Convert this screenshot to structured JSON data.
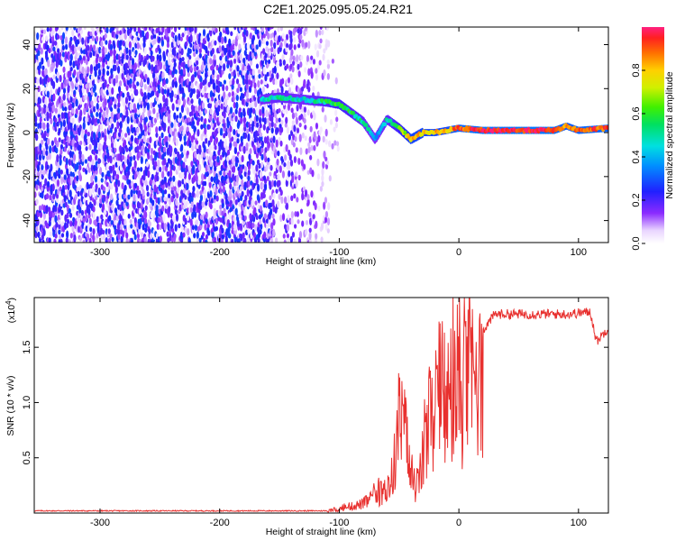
{
  "title": "C2E1.2025.095.05.24.R21",
  "chart_data": [
    {
      "type": "heatmap",
      "xlabel": "Height of straight line (km)",
      "ylabel": "Frequency (Hz)",
      "xlim": [
        -355,
        125
      ],
      "ylim": [
        -50,
        48
      ],
      "xticks": [
        -300,
        -200,
        -100,
        0,
        100
      ],
      "yticks": [
        -40,
        -20,
        0,
        20,
        40
      ],
      "noise_region": {
        "x_range": [
          -355,
          -100
        ],
        "y_range": [
          -50,
          48
        ],
        "typical_amplitude": 0.12
      },
      "ridge": {
        "description_points": [
          {
            "x": -165,
            "y": 15,
            "amp": 0.45
          },
          {
            "x": -150,
            "y": 16,
            "amp": 0.5
          },
          {
            "x": -130,
            "y": 15,
            "amp": 0.45
          },
          {
            "x": -110,
            "y": 14,
            "amp": 0.55
          },
          {
            "x": -100,
            "y": 13,
            "amp": 0.6
          },
          {
            "x": -90,
            "y": 9,
            "amp": 0.55
          },
          {
            "x": -80,
            "y": 5,
            "amp": 0.5
          },
          {
            "x": -70,
            "y": -3,
            "amp": 0.4
          },
          {
            "x": -60,
            "y": 6,
            "amp": 0.5
          },
          {
            "x": -50,
            "y": 2,
            "amp": 0.6
          },
          {
            "x": -40,
            "y": -3,
            "amp": 0.8
          },
          {
            "x": -30,
            "y": 0,
            "amp": 0.8
          },
          {
            "x": -20,
            "y": 0,
            "amp": 0.8
          },
          {
            "x": -10,
            "y": 1,
            "amp": 0.8
          },
          {
            "x": 0,
            "y": 2,
            "amp": 0.9
          },
          {
            "x": 20,
            "y": 1,
            "amp": 0.95
          },
          {
            "x": 50,
            "y": 1,
            "amp": 0.95
          },
          {
            "x": 80,
            "y": 1,
            "amp": 0.95
          },
          {
            "x": 90,
            "y": 3,
            "amp": 0.85
          },
          {
            "x": 100,
            "y": 1,
            "amp": 0.9
          },
          {
            "x": 125,
            "y": 2,
            "amp": 0.9
          }
        ]
      },
      "colorbar": {
        "label": "Normalized spectral amplitude",
        "range": [
          0,
          1
        ],
        "ticks": [
          "0.0",
          "0.2",
          "0.4",
          "0.6",
          "0.8"
        ],
        "tick_values": [
          0,
          0.2,
          0.4,
          0.6,
          0.8
        ]
      }
    },
    {
      "type": "line",
      "xlabel": "Height of straight line (km)",
      "ylabel": "SNR (10 * v/v)",
      "multiplier_label": "(x10",
      "multiplier_exp": "4",
      "xlim": [
        -355,
        125
      ],
      "ylim": [
        0,
        1.95
      ],
      "xticks": [
        -300,
        -200,
        -100,
        0,
        100
      ],
      "yticks": [
        0.5,
        1,
        1.5
      ],
      "ytick_labels": [
        "0.5",
        "1.0",
        "1.5"
      ],
      "series": [
        {
          "color": "#e8302e",
          "envelope_points": [
            {
              "x": -355,
              "y": 0.02
            },
            {
              "x": -110,
              "y": 0.02
            },
            {
              "x": -100,
              "y": 0.05
            },
            {
              "x": -80,
              "y": 0.12
            },
            {
              "x": -60,
              "y": 0.3
            },
            {
              "x": -55,
              "y": 0.5
            },
            {
              "x": -50,
              "y": 1.2
            },
            {
              "x": -45,
              "y": 1.0
            },
            {
              "x": -40,
              "y": 0.45
            },
            {
              "x": -35,
              "y": 0.3
            },
            {
              "x": -30,
              "y": 0.7
            },
            {
              "x": -25,
              "y": 1.1
            },
            {
              "x": -15,
              "y": 1.3
            },
            {
              "x": -5,
              "y": 1.45
            },
            {
              "x": 5,
              "y": 1.55
            },
            {
              "x": 10,
              "y": 1.75
            },
            {
              "x": 20,
              "y": 1.65
            },
            {
              "x": 30,
              "y": 1.8
            },
            {
              "x": 60,
              "y": 1.8
            },
            {
              "x": 90,
              "y": 1.8
            },
            {
              "x": 110,
              "y": 1.82
            },
            {
              "x": 115,
              "y": 1.55
            },
            {
              "x": 125,
              "y": 1.68
            }
          ]
        }
      ]
    }
  ]
}
